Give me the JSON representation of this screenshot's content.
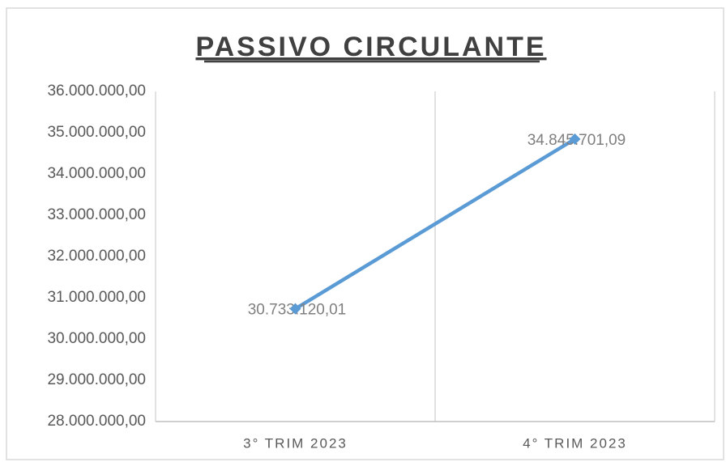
{
  "chart_data": {
    "type": "line",
    "title": "PASSIVO  CIRCULANTE",
    "categories": [
      "3° TRIM 2023",
      "4° TRIM 2023"
    ],
    "series": [
      {
        "name": "Passivo Circulante",
        "color": "#5b9bd5",
        "values": [
          30733120.01,
          34845701.09
        ],
        "value_labels": [
          "30.733.120,01",
          "34.845.701,09"
        ]
      }
    ],
    "ylim": [
      28000000,
      36000000
    ],
    "yticks": [
      {
        "value": 28000000,
        "label": "28.000.000,00"
      },
      {
        "value": 29000000,
        "label": "29.000.000,00"
      },
      {
        "value": 30000000,
        "label": "30.000.000,00"
      },
      {
        "value": 31000000,
        "label": "31.000.000,00"
      },
      {
        "value": 32000000,
        "label": "32.000.000,00"
      },
      {
        "value": 33000000,
        "label": "33.000.000,00"
      },
      {
        "value": 34000000,
        "label": "34.000.000,00"
      },
      {
        "value": 35000000,
        "label": "35.000.000,00"
      },
      {
        "value": 36000000,
        "label": "36.000.000,00"
      }
    ],
    "grid": false
  }
}
